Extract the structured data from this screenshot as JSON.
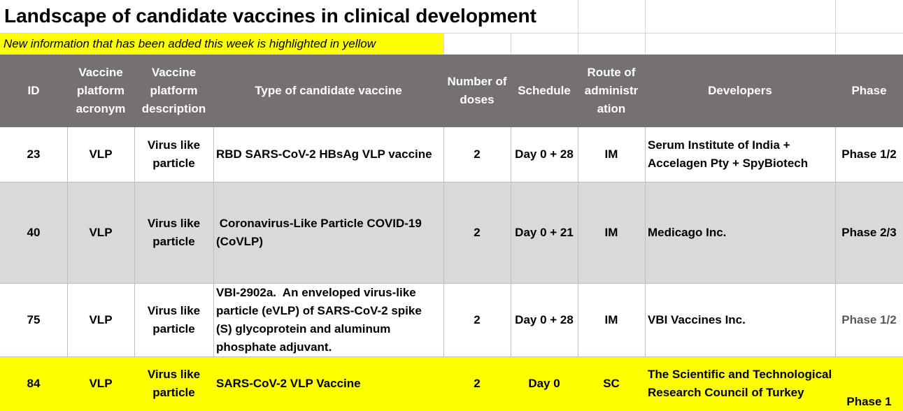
{
  "sheet": {
    "title": "Landscape of candidate vaccines in clinical development",
    "subtitle": "New information that has been added this week is highlighted in yellow"
  },
  "columns": [
    {
      "key": "id",
      "label": "ID"
    },
    {
      "key": "acronym",
      "label": "Vaccine platform acronym"
    },
    {
      "key": "description",
      "label": "Vaccine platform description"
    },
    {
      "key": "type",
      "label": "Type of candidate vaccine"
    },
    {
      "key": "doses",
      "label": "Number of doses"
    },
    {
      "key": "schedule",
      "label": "Schedule"
    },
    {
      "key": "route",
      "label": "Route of administration"
    },
    {
      "key": "developers",
      "label": "Developers"
    },
    {
      "key": "phase",
      "label": "Phase"
    }
  ],
  "rows": [
    {
      "id": "23",
      "acronym": "VLP",
      "description": "Virus like particle",
      "type": "RBD SARS-CoV-2 HBsAg VLP vaccine",
      "doses": "2",
      "schedule": "Day 0 + 28",
      "route": "IM",
      "developers": "Serum Institute of India + Accelagen Pty + SpyBiotech",
      "phase": "Phase 1/2",
      "highlight": "none"
    },
    {
      "id": "40",
      "acronym": "VLP",
      "description": "Virus like particle",
      "type": " Coronavirus-Like Particle COVID-19 (CoVLP)",
      "doses": "2",
      "schedule": "Day 0 + 21",
      "route": "IM",
      "developers": "Medicago Inc.",
      "phase": "Phase 2/3",
      "highlight": "gray"
    },
    {
      "id": "75",
      "acronym": "VLP",
      "description": "Virus like particle",
      "type": "VBI-2902a.  An enveloped virus-like particle (eVLP) of SARS-CoV-2 spike (S) glycoprotein and aluminum phosphate adjuvant.",
      "doses": "2",
      "schedule": "Day 0 + 28",
      "route": "IM",
      "developers": "VBI Vaccines Inc.",
      "phase": "Phase 1/2",
      "highlight": "none"
    },
    {
      "id": "84",
      "acronym": "VLP",
      "description": "Virus like particle",
      "type": "SARS-CoV-2 VLP Vaccine",
      "doses": "2",
      "schedule": "Day 0",
      "route": "SC",
      "developers": "The Scientific and Technological Research Council of Turkey",
      "phase": "Phase 1",
      "highlight": "yellow"
    }
  ],
  "colors": {
    "header_bg": "#757171",
    "header_text": "#ffffff",
    "new_info_highlight": "#ffff00",
    "alt_row": "#d9d9d9"
  }
}
